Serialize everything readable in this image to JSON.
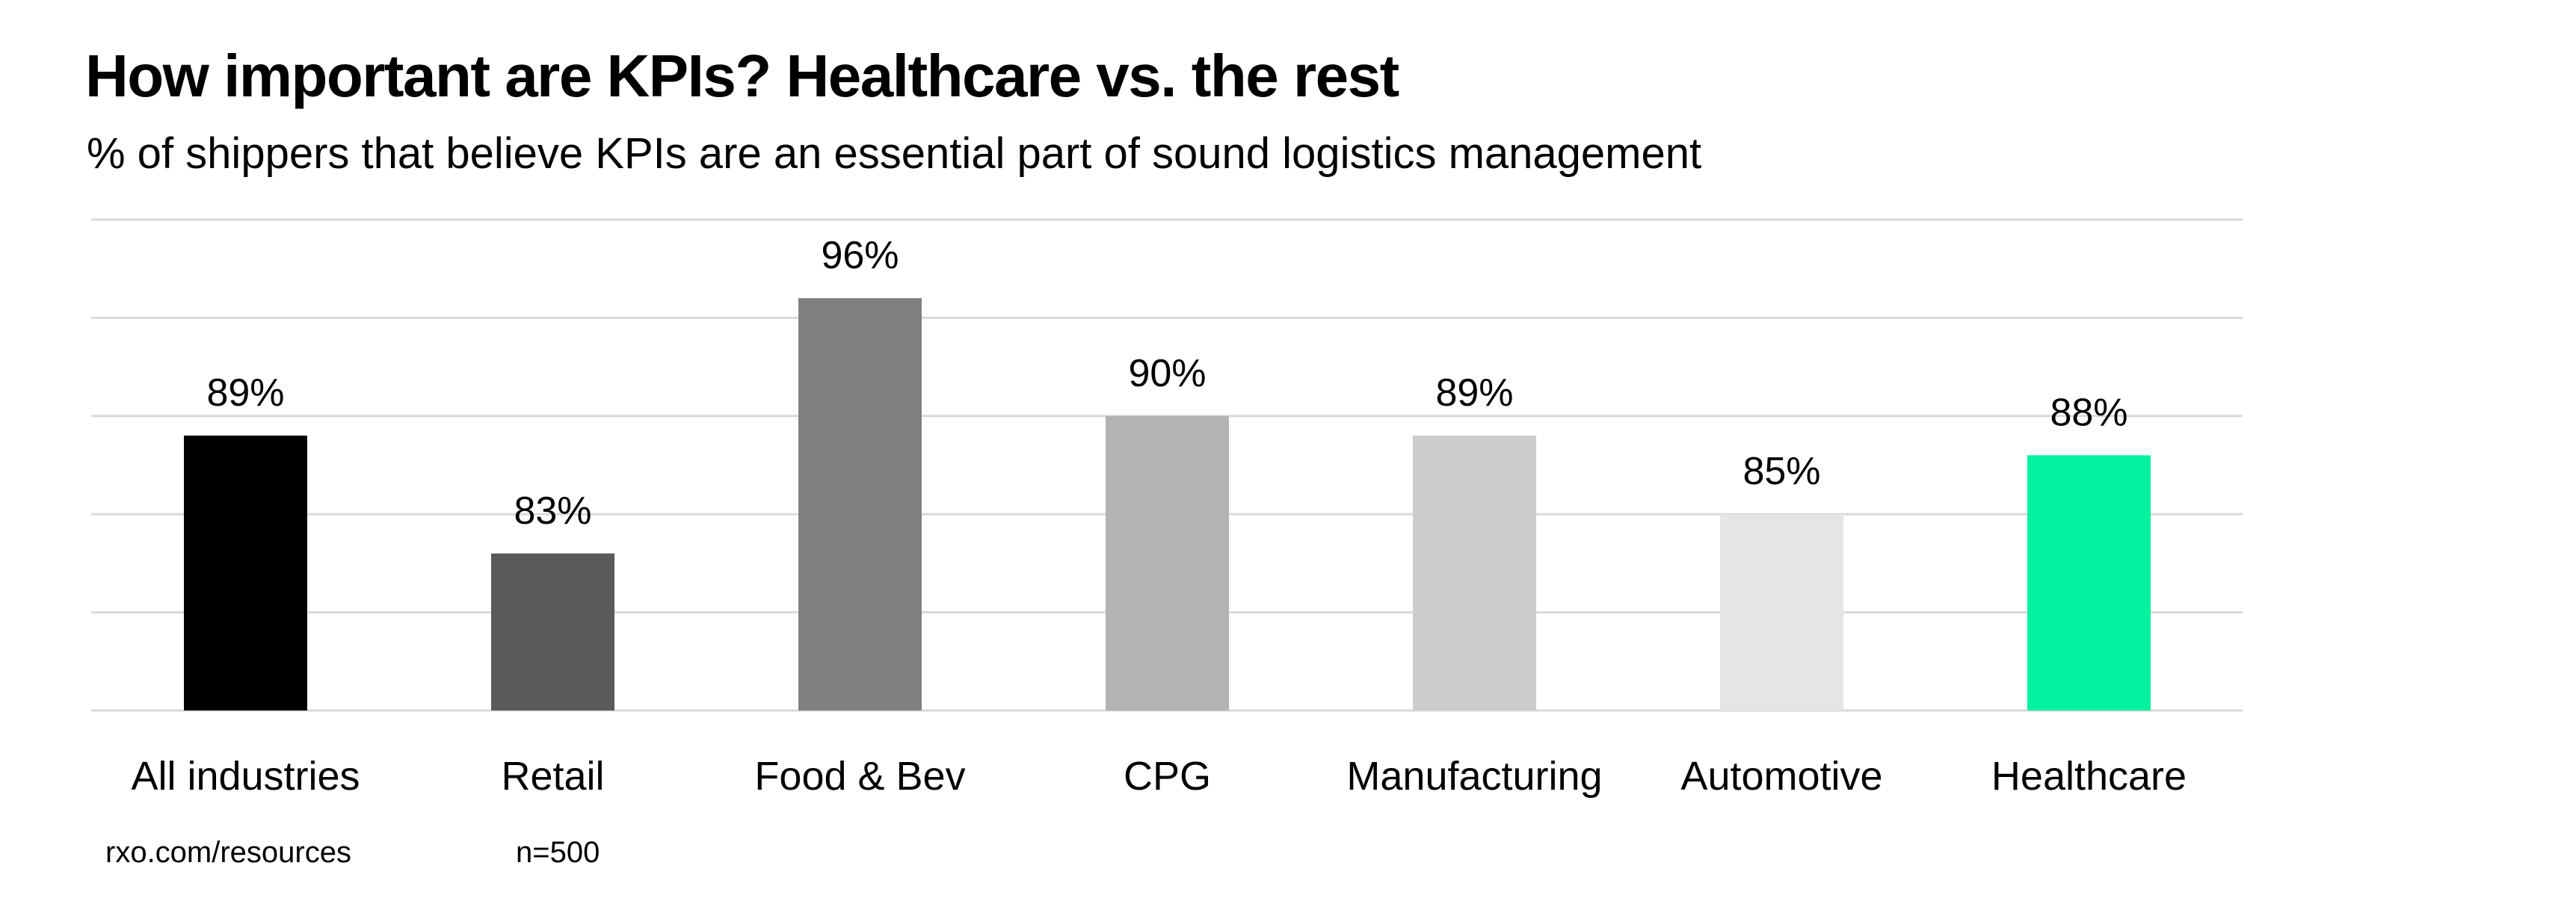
{
  "header": {
    "title": "How important are KPIs? Healthcare vs. the rest",
    "subtitle": "% of shippers that believe KPIs are an essential part of sound logistics management"
  },
  "footer": {
    "source": "rxo.com/resources",
    "sample_size": "n=500"
  },
  "chart_data": {
    "type": "bar",
    "title": "How important are KPIs? Healthcare vs. the rest",
    "subtitle": "% of shippers that believe KPIs are an essential part of sound logistics management",
    "xlabel": "",
    "ylabel": "",
    "categories": [
      "All industries",
      "Retail",
      "Food & Bev",
      "CPG",
      "Manufacturing",
      "Automotive",
      "Healthcare"
    ],
    "values": [
      89,
      83,
      96,
      90,
      89,
      85,
      88
    ],
    "data_labels": [
      "89%",
      "83%",
      "96%",
      "90%",
      "89%",
      "85%",
      "88%"
    ],
    "colors": [
      "#000000",
      "#5a5a5a",
      "#808080",
      "#b3b3b3",
      "#cccccc",
      "#e5e5e5",
      "#00f29f"
    ],
    "highlight_category": "Healthcare",
    "ylim": [
      75,
      100
    ],
    "yticks": [
      75,
      80,
      85,
      90,
      95,
      100
    ],
    "ytick_labels_visible": false,
    "grid": true,
    "gridline_color": "#d9d9d9",
    "legend": "none"
  }
}
